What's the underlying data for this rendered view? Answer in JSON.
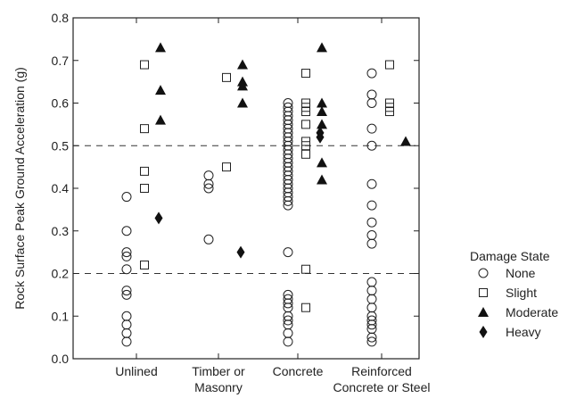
{
  "chart_data": {
    "type": "scatter",
    "ylabel": "Rock Surface Peak Ground Acceleration (g)",
    "ylim": [
      0,
      0.8
    ],
    "yticks": [
      "0.0",
      "0.1",
      "0.2",
      "0.3",
      "0.4",
      "0.5",
      "0.6",
      "0.7",
      "0.8"
    ],
    "categories": [
      [
        "Unlined"
      ],
      [
        "Timber or",
        "Masonry"
      ],
      [
        "Concrete"
      ],
      [
        "Reinforced",
        "Concrete or Steel"
      ]
    ],
    "reference_lines": [
      0.2,
      0.5
    ],
    "legend": {
      "title": "Damage State",
      "position": "right"
    },
    "series": [
      {
        "name": "None",
        "marker": "circle",
        "points": [
          [
            0,
            0.38
          ],
          [
            0,
            0.3
          ],
          [
            0,
            0.25
          ],
          [
            0,
            0.24
          ],
          [
            0,
            0.21
          ],
          [
            0,
            0.16
          ],
          [
            0,
            0.15
          ],
          [
            0,
            0.1
          ],
          [
            0,
            0.08
          ],
          [
            0,
            0.06
          ],
          [
            0,
            0.04
          ],
          [
            1,
            0.43
          ],
          [
            1,
            0.41
          ],
          [
            1,
            0.4
          ],
          [
            1,
            0.28
          ],
          [
            2,
            0.6
          ],
          [
            2,
            0.59
          ],
          [
            2,
            0.58
          ],
          [
            2,
            0.57
          ],
          [
            2,
            0.56
          ],
          [
            2,
            0.55
          ],
          [
            2,
            0.54
          ],
          [
            2,
            0.53
          ],
          [
            2,
            0.52
          ],
          [
            2,
            0.51
          ],
          [
            2,
            0.5
          ],
          [
            2,
            0.49
          ],
          [
            2,
            0.48
          ],
          [
            2,
            0.47
          ],
          [
            2,
            0.46
          ],
          [
            2,
            0.45
          ],
          [
            2,
            0.44
          ],
          [
            2,
            0.43
          ],
          [
            2,
            0.42
          ],
          [
            2,
            0.41
          ],
          [
            2,
            0.4
          ],
          [
            2,
            0.39
          ],
          [
            2,
            0.38
          ],
          [
            2,
            0.37
          ],
          [
            2,
            0.36
          ],
          [
            2,
            0.25
          ],
          [
            2,
            0.15
          ],
          [
            2,
            0.14
          ],
          [
            2,
            0.13
          ],
          [
            2,
            0.12
          ],
          [
            2,
            0.1
          ],
          [
            2,
            0.09
          ],
          [
            2,
            0.08
          ],
          [
            2,
            0.06
          ],
          [
            2,
            0.04
          ],
          [
            3,
            0.67
          ],
          [
            3,
            0.62
          ],
          [
            3,
            0.6
          ],
          [
            3,
            0.54
          ],
          [
            3,
            0.5
          ],
          [
            3,
            0.41
          ],
          [
            3,
            0.36
          ],
          [
            3,
            0.32
          ],
          [
            3,
            0.29
          ],
          [
            3,
            0.27
          ],
          [
            3,
            0.18
          ],
          [
            3,
            0.16
          ],
          [
            3,
            0.14
          ],
          [
            3,
            0.12
          ],
          [
            3,
            0.1
          ],
          [
            3,
            0.09
          ],
          [
            3,
            0.08
          ],
          [
            3,
            0.07
          ],
          [
            3,
            0.05
          ],
          [
            3,
            0.04
          ]
        ]
      },
      {
        "name": "Slight",
        "marker": "square",
        "points": [
          [
            0,
            0.69
          ],
          [
            0,
            0.54
          ],
          [
            0,
            0.44
          ],
          [
            0,
            0.4
          ],
          [
            0,
            0.22
          ],
          [
            1,
            0.66
          ],
          [
            1,
            0.45
          ],
          [
            2,
            0.67
          ],
          [
            2,
            0.6
          ],
          [
            2,
            0.59
          ],
          [
            2,
            0.58
          ],
          [
            2,
            0.55
          ],
          [
            2,
            0.51
          ],
          [
            2,
            0.5
          ],
          [
            2,
            0.48
          ],
          [
            2,
            0.21
          ],
          [
            2,
            0.12
          ],
          [
            3,
            0.69
          ],
          [
            3,
            0.6
          ],
          [
            3,
            0.59
          ],
          [
            3,
            0.58
          ]
        ]
      },
      {
        "name": "Moderate",
        "marker": "triangle",
        "points": [
          [
            0,
            0.73
          ],
          [
            0,
            0.63
          ],
          [
            0,
            0.56
          ],
          [
            1,
            0.69
          ],
          [
            1,
            0.65
          ],
          [
            1,
            0.64
          ],
          [
            1,
            0.6
          ],
          [
            2,
            0.73
          ],
          [
            2,
            0.6
          ],
          [
            2,
            0.58
          ],
          [
            2,
            0.55
          ],
          [
            2,
            0.46
          ],
          [
            2,
            0.42
          ],
          [
            3,
            0.51
          ]
        ]
      },
      {
        "name": "Heavy",
        "marker": "diamond",
        "points": [
          [
            0,
            0.33
          ],
          [
            1,
            0.25
          ],
          [
            2,
            0.53
          ],
          [
            2,
            0.52
          ]
        ]
      }
    ]
  }
}
